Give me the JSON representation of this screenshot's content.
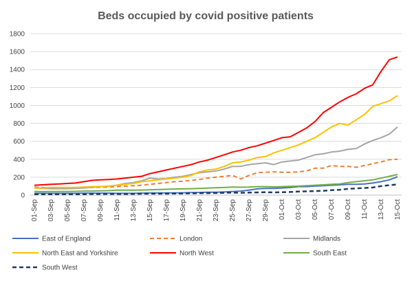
{
  "chart_data": {
    "type": "line",
    "title": "Beds occupied by covid positive patients",
    "xlabel": "",
    "ylabel": "",
    "ylim": [
      0,
      1800
    ],
    "yticks": [
      0,
      200,
      400,
      600,
      800,
      1000,
      1200,
      1400,
      1600,
      1800
    ],
    "grid": true,
    "legend_position": "bottom",
    "x": [
      "01-Sep",
      "02-Sep",
      "03-Sep",
      "04-Sep",
      "05-Sep",
      "06-Sep",
      "07-Sep",
      "08-Sep",
      "09-Sep",
      "10-Sep",
      "11-Sep",
      "12-Sep",
      "13-Sep",
      "14-Sep",
      "15-Sep",
      "16-Sep",
      "17-Sep",
      "18-Sep",
      "19-Sep",
      "20-Sep",
      "21-Sep",
      "22-Sep",
      "23-Sep",
      "24-Sep",
      "25-Sep",
      "26-Sep",
      "27-Sep",
      "28-Sep",
      "29-Sep",
      "30-Sep",
      "01-Oct",
      "02-Oct",
      "03-Oct",
      "04-Oct",
      "05-Oct",
      "06-Oct",
      "07-Oct",
      "08-Oct",
      "09-Oct",
      "10-Oct",
      "11-Oct",
      "12-Oct",
      "13-Oct",
      "14-Oct",
      "15-Oct"
    ],
    "x_tick_labels": [
      "01-Sep",
      "03-Sep",
      "05-Sep",
      "07-Sep",
      "09-Sep",
      "11-Sep",
      "13-Sep",
      "15-Sep",
      "17-Sep",
      "19-Sep",
      "21-Sep",
      "23-Sep",
      "25-Sep",
      "27-Sep",
      "29-Sep",
      "01-Oct",
      "03-Oct",
      "05-Oct",
      "07-Oct",
      "09-Oct",
      "11-Oct",
      "13-Oct",
      "15-Oct"
    ],
    "series": [
      {
        "name": "East of England",
        "color": "#4472c4",
        "dash": "solid",
        "values": [
          20,
          20,
          20,
          20,
          20,
          20,
          22,
          22,
          22,
          22,
          20,
          20,
          20,
          22,
          24,
          24,
          25,
          25,
          26,
          28,
          30,
          32,
          32,
          35,
          40,
          45,
          55,
          70,
          75,
          75,
          80,
          85,
          95,
          95,
          100,
          105,
          110,
          115,
          120,
          120,
          125,
          135,
          150,
          170,
          205
        ]
      },
      {
        "name": "London",
        "color": "#ed7d31",
        "dash": "dashed",
        "values": [
          90,
          85,
          80,
          80,
          80,
          80,
          85,
          85,
          88,
          90,
          95,
          100,
          105,
          110,
          120,
          130,
          140,
          150,
          155,
          165,
          175,
          190,
          200,
          210,
          220,
          180,
          220,
          250,
          255,
          260,
          255,
          255,
          260,
          270,
          300,
          300,
          330,
          320,
          320,
          310,
          330,
          350,
          370,
          395,
          400
        ]
      },
      {
        "name": "Midlands",
        "color": "#a5a5a5",
        "dash": "solid",
        "values": [
          80,
          75,
          72,
          72,
          72,
          74,
          80,
          88,
          95,
          100,
          110,
          130,
          140,
          160,
          190,
          180,
          185,
          200,
          210,
          230,
          250,
          260,
          270,
          290,
          320,
          320,
          340,
          350,
          360,
          340,
          370,
          380,
          390,
          420,
          450,
          460,
          480,
          490,
          510,
          520,
          570,
          610,
          640,
          680,
          760
        ]
      },
      {
        "name": "North East and Yorkshire",
        "color": "#ffc000",
        "dash": "solid",
        "values": [
          80,
          80,
          85,
          85,
          85,
          85,
          90,
          95,
          95,
          100,
          110,
          120,
          130,
          150,
          160,
          170,
          180,
          190,
          200,
          220,
          260,
          280,
          290,
          320,
          360,
          370,
          390,
          420,
          430,
          470,
          500,
          530,
          560,
          600,
          640,
          700,
          760,
          800,
          780,
          840,
          900,
          990,
          1020,
          1050,
          1110
        ]
      },
      {
        "name": "North West",
        "color": "#ff0000",
        "dash": "solid",
        "values": [
          110,
          115,
          120,
          125,
          130,
          135,
          150,
          165,
          170,
          175,
          180,
          190,
          200,
          210,
          240,
          260,
          280,
          300,
          320,
          340,
          370,
          390,
          420,
          450,
          480,
          500,
          530,
          550,
          580,
          610,
          640,
          650,
          700,
          750,
          820,
          920,
          980,
          1040,
          1090,
          1130,
          1190,
          1230,
          1380,
          1510,
          1540
        ]
      },
      {
        "name": "South East",
        "color": "#70ad47",
        "dash": "solid",
        "values": [
          40,
          38,
          40,
          40,
          40,
          42,
          45,
          45,
          48,
          50,
          55,
          55,
          55,
          57,
          60,
          62,
          65,
          68,
          70,
          72,
          75,
          78,
          82,
          85,
          90,
          88,
          90,
          95,
          95,
          92,
          95,
          98,
          100,
          105,
          110,
          115,
          120,
          125,
          140,
          150,
          160,
          170,
          190,
          210,
          230
        ]
      },
      {
        "name": "South West",
        "color": "#1f3864",
        "dash": "dashed",
        "values": [
          10,
          10,
          10,
          10,
          10,
          10,
          10,
          12,
          12,
          12,
          12,
          12,
          14,
          15,
          16,
          16,
          16,
          18,
          18,
          20,
          22,
          22,
          24,
          26,
          28,
          26,
          28,
          30,
          32,
          30,
          32,
          35,
          40,
          42,
          45,
          48,
          55,
          60,
          70,
          75,
          80,
          85,
          100,
          110,
          120
        ]
      }
    ]
  }
}
